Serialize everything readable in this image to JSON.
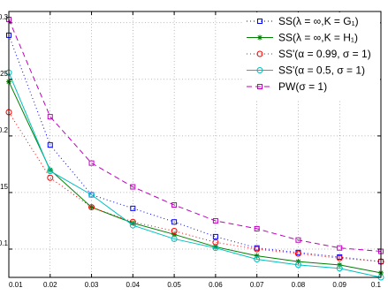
{
  "chart_data": {
    "type": "line",
    "title": "",
    "xlabel": "",
    "ylabel": "",
    "xlim": [
      0.01,
      0.1
    ],
    "ylim": [
      0.075,
      0.31
    ],
    "x": [
      0.01,
      0.02,
      0.03,
      0.04,
      0.05,
      0.06,
      0.07,
      0.08,
      0.09,
      0.1
    ],
    "x_ticks": [
      0.01,
      0.02,
      0.03,
      0.04,
      0.05,
      0.06,
      0.07,
      0.08,
      0.09,
      0.1
    ],
    "x_tick_labels": [
      "0.01",
      "0.02",
      "0.03",
      "0.04",
      "0.05",
      "0.06",
      "0.07",
      "0.08",
      "0.09",
      "0.1"
    ],
    "y_ticks": [
      0.1,
      0.15,
      0.2,
      0.25,
      0.3
    ],
    "y_tick_labels": [
      "0.1",
      "0.15",
      "0.2",
      "0.25",
      "0.3"
    ],
    "grid": true,
    "legend_position": "top-right",
    "series": [
      {
        "name": "SS(λ = ∞,K = G₁)",
        "color": "#0000ff",
        "line_style": "dotted",
        "marker": "square",
        "values": [
          0.289,
          0.192,
          0.148,
          0.136,
          0.124,
          0.111,
          0.101,
          0.097,
          0.093,
          0.089
        ]
      },
      {
        "name": "SS(λ = ∞,K = H₁)",
        "color": "#007f00",
        "line_style": "solid",
        "marker": "asterisk",
        "values": [
          0.248,
          0.17,
          0.137,
          0.123,
          0.113,
          0.102,
          0.094,
          0.089,
          0.086,
          0.079
        ]
      },
      {
        "name": "SS'(α = 0.99, σ = 1)",
        "color": "#ff0000",
        "line_style": "dotted",
        "marker": "circle",
        "values": [
          0.221,
          0.163,
          0.137,
          0.124,
          0.116,
          0.106,
          0.1,
          0.096,
          0.092,
          0.089
        ]
      },
      {
        "name": "SS'(α = 0.5, σ = 1)",
        "color": "#00bfbf",
        "line_style": "solid",
        "marker": "circle",
        "values": [
          0.256,
          0.169,
          0.148,
          0.121,
          0.109,
          0.101,
          0.091,
          0.086,
          0.083,
          0.075
        ]
      },
      {
        "name": "PW(σ = 1)",
        "color": "#bf00bf",
        "line_style": "dashed",
        "marker": "square",
        "values": [
          0.303,
          0.217,
          0.176,
          0.155,
          0.139,
          0.125,
          0.118,
          0.108,
          0.101,
          0.098
        ]
      }
    ]
  }
}
